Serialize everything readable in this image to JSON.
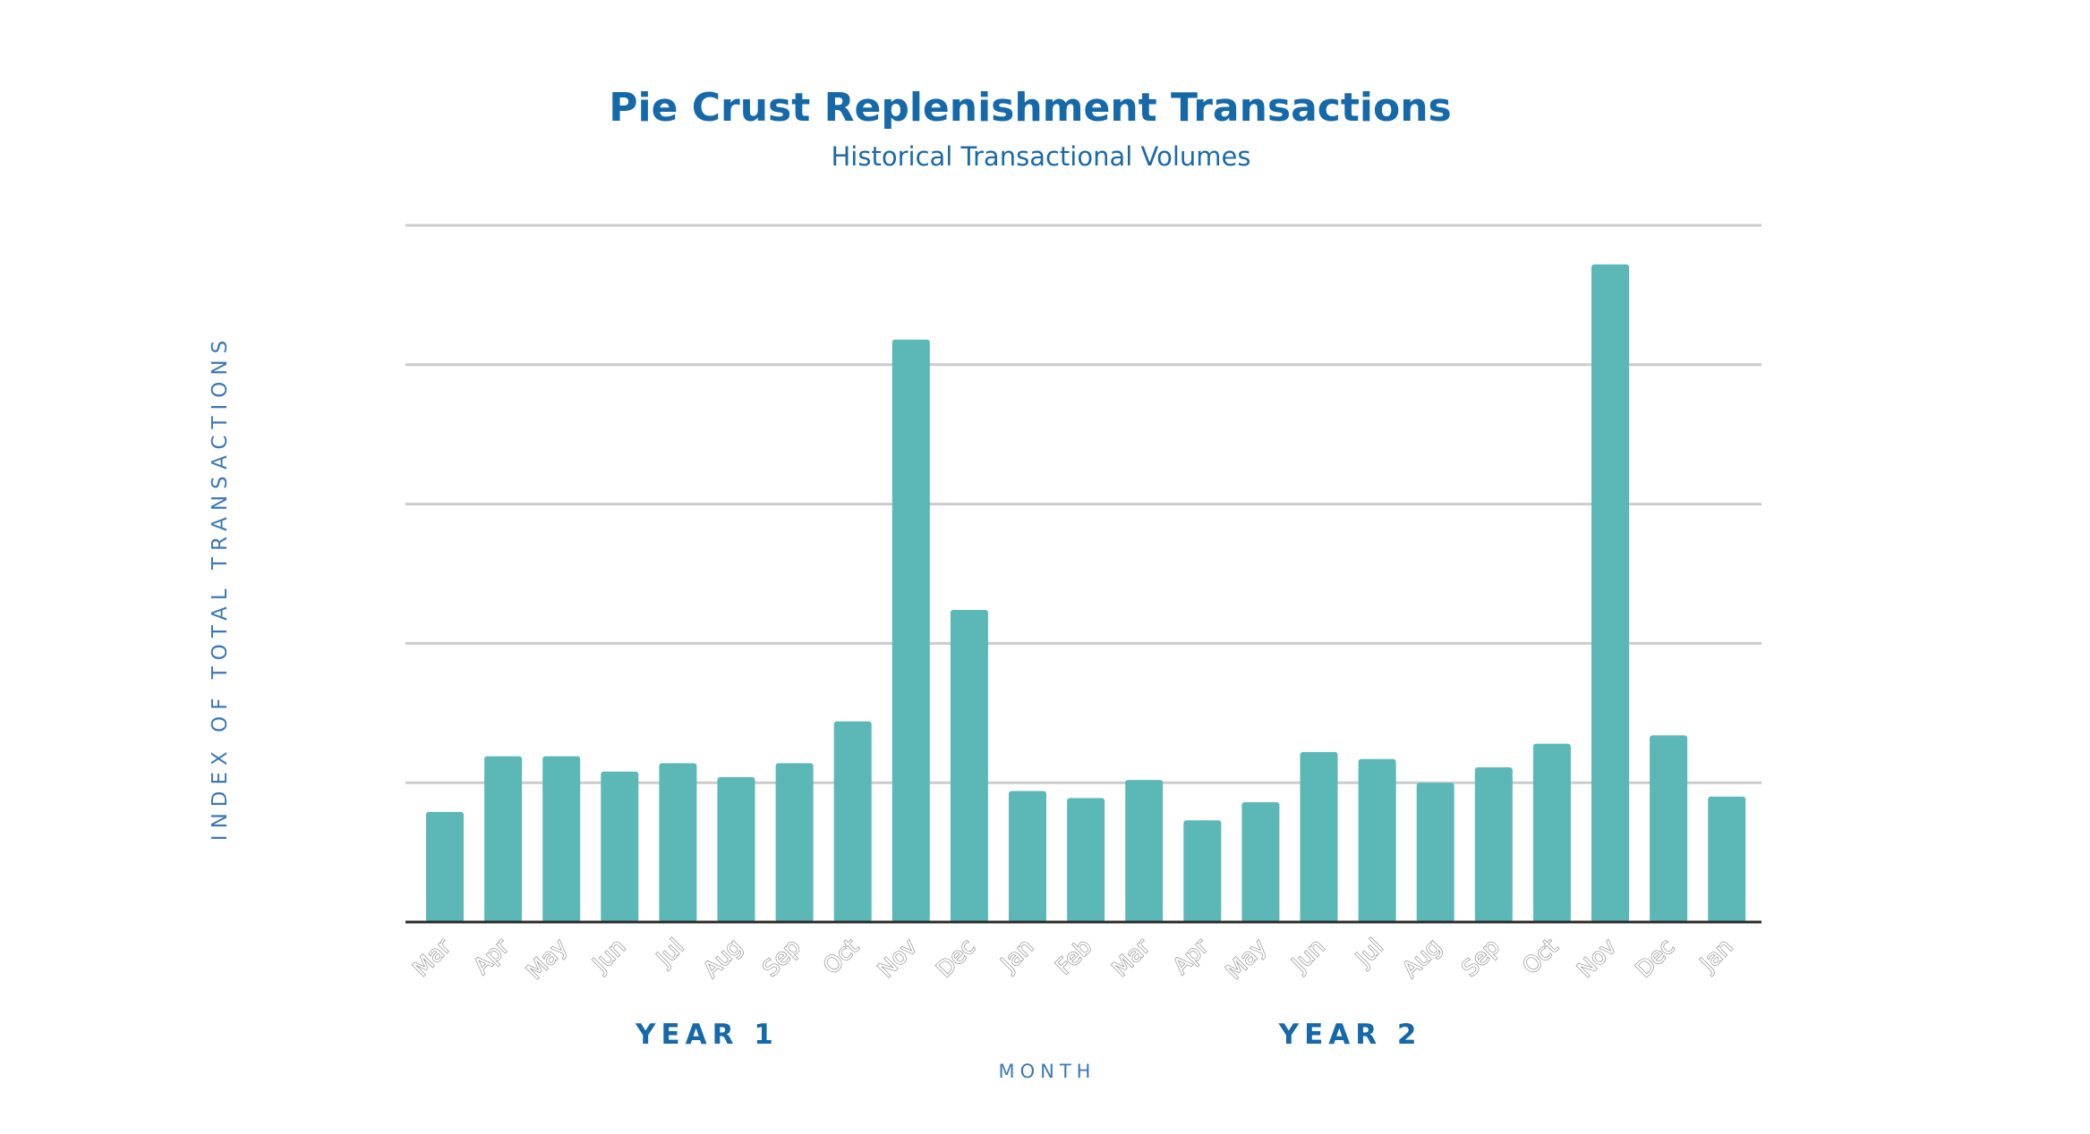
{
  "chart_data": {
    "type": "bar",
    "title": "Pie Crust Replenishment Transactions",
    "subtitle": "Historical Transactional Volumes",
    "xlabel": "MONTH",
    "ylabel": "INDEX OF TOTAL TRANSACTIONS",
    "ylim": [
      0,
      5
    ],
    "gridlines": [
      1,
      2,
      3,
      4,
      5
    ],
    "grid": true,
    "ytick_labels_shown": false,
    "bar_color": "#5bb8b6",
    "categories": [
      "Mar",
      "Apr",
      "May",
      "Jun",
      "Jul",
      "Aug",
      "Sep",
      "Oct",
      "Nov",
      "Dec",
      "Jan",
      "Feb",
      "Mar",
      "Apr",
      "May",
      "Jun",
      "Jul",
      "Aug",
      "Sep",
      "Oct",
      "Nov",
      "Dec",
      "Jan"
    ],
    "values": [
      0.79,
      1.19,
      1.19,
      1.08,
      1.14,
      1.04,
      1.14,
      1.44,
      4.18,
      2.24,
      0.94,
      0.89,
      1.02,
      0.73,
      0.86,
      1.22,
      1.17,
      1.0,
      1.11,
      1.28,
      4.72,
      1.34,
      0.9
    ],
    "groups": [
      {
        "label": "YEAR 1",
        "start_index": 0,
        "end_index": 9
      },
      {
        "label": "YEAR 2",
        "start_index": 10,
        "end_index": 22
      }
    ]
  }
}
